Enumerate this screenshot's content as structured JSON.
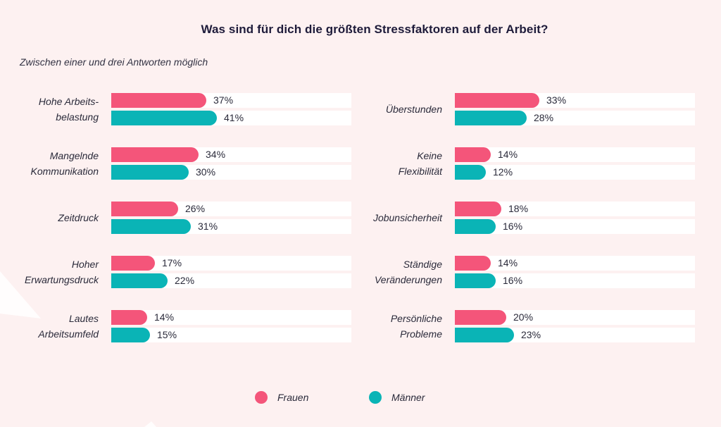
{
  "title": "Was sind für dich die größten Stressfaktoren auf der Arbeit?",
  "subtitle": "Zwischen einer und drei Antworten möglich",
  "colors": {
    "frauen": "#f4557a",
    "maenner": "#0ab4b6",
    "background": "#fdf1f1",
    "track": "#ffffff"
  },
  "legend": {
    "frauen": "Frauen",
    "maenner": "Männer"
  },
  "chart_data": {
    "type": "bar",
    "title": "Was sind für dich die größten Stressfaktoren auf der Arbeit?",
    "subtitle": "Zwischen einer und drei Antworten möglich",
    "unit": "%",
    "xlim": [
      0,
      100
    ],
    "series": [
      {
        "name": "Frauen",
        "color": "#f4557a"
      },
      {
        "name": "Männer",
        "color": "#0ab4b6"
      }
    ],
    "items": [
      {
        "label": "Hohe Arbeits-\nbelastung",
        "frauen": 37,
        "maenner": 41,
        "frauen_label": "37%",
        "maenner_label": "41%"
      },
      {
        "label": "Mangelnde\nKommunikation",
        "frauen": 34,
        "maenner": 30,
        "frauen_label": "34%",
        "maenner_label": "30%"
      },
      {
        "label": "Zeitdruck",
        "frauen": 26,
        "maenner": 31,
        "frauen_label": "26%",
        "maenner_label": "31%"
      },
      {
        "label": "Hoher\nErwartungsdruck",
        "frauen": 17,
        "maenner": 22,
        "frauen_label": "17%",
        "maenner_label": "22%"
      },
      {
        "label": "Lautes\nArbeitsumfeld",
        "frauen": 14,
        "maenner": 15,
        "frauen_label": "14%",
        "maenner_label": "15%"
      },
      {
        "label": "Überstunden",
        "frauen": 33,
        "maenner": 28,
        "frauen_label": "33%",
        "maenner_label": "28%"
      },
      {
        "label": "Keine\nFlexibilität",
        "frauen": 14,
        "maenner": 12,
        "frauen_label": "14%",
        "maenner_label": "12%"
      },
      {
        "label": "Jobunsicherheit",
        "frauen": 18,
        "maenner": 16,
        "frauen_label": "18%",
        "maenner_label": "16%"
      },
      {
        "label": "Ständige\nVeränderungen",
        "frauen": 14,
        "maenner": 16,
        "frauen_label": "14%",
        "maenner_label": "16%"
      },
      {
        "label": "Persönliche\nProbleme",
        "frauen": 20,
        "maenner": 23,
        "frauen_label": "20%",
        "maenner_label": "23%"
      }
    ]
  }
}
